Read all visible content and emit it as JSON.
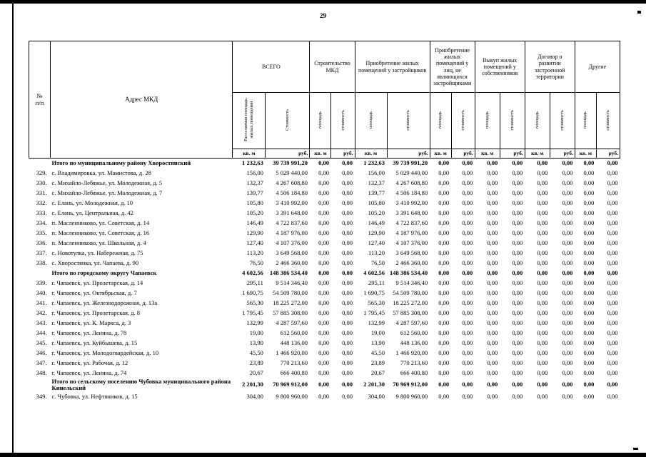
{
  "page": {
    "number": "29"
  },
  "table": {
    "header": {
      "num": "№\nп/п",
      "address": "Адрес МКД",
      "groups": [
        {
          "label": "ВСЕГО",
          "sub": [
            "Расселяемая площадь жилых помещений",
            "Стоимость"
          ]
        },
        {
          "label": "Строительство МКД",
          "sub": [
            "площадь",
            "стоимость"
          ]
        },
        {
          "label": "Приобретение жилых помещений у застройщиков",
          "sub": [
            "площадь",
            "стоимость"
          ]
        },
        {
          "label": "Приобретение жилых помещений у лиц, не являющихся застройщиками",
          "sub": [
            "площадь",
            "стоимость"
          ]
        },
        {
          "label": "Выкуп жилых помещений у собственников",
          "sub": [
            "площадь",
            "стоимость"
          ]
        },
        {
          "label": "Договор о развитии застроенной территории",
          "sub": [
            "площадь",
            "стоимость"
          ]
        },
        {
          "label": "Другие",
          "sub": [
            "площадь",
            "стоимость"
          ]
        }
      ],
      "units": [
        "кв. м",
        "руб.",
        "кв. м",
        "руб.",
        "кв. м",
        "руб.",
        "кв. м",
        "руб.",
        "кв. м",
        "руб.",
        "кв. м",
        "руб.",
        "кв. м",
        "руб."
      ]
    },
    "rows": [
      {
        "num": "",
        "address": "Итого по муниципальному району Хворостянский",
        "bold": true,
        "values": [
          "1 232,63",
          "39 739 991,20",
          "0,00",
          "0,00",
          "1 232,63",
          "39 739 991,20",
          "0,00",
          "0,00",
          "0,00",
          "0,00",
          "0,00",
          "0,00",
          "0,00",
          "0,00"
        ]
      },
      {
        "num": "329.",
        "address": "с. Владимировка, ул. Мамистова, д. 28",
        "bold": false,
        "values": [
          "156,00",
          "5 029 440,00",
          "0,00",
          "0,00",
          "156,00",
          "5 029 440,00",
          "0,00",
          "0,00",
          "0,00",
          "0,00",
          "0,00",
          "0,00",
          "0,00",
          "0,00"
        ]
      },
      {
        "num": "330.",
        "address": "с. Михайло-Лебяжье, ул. Молодежная, д. 5",
        "bold": false,
        "values": [
          "132,37",
          "4 267 608,80",
          "0,00",
          "0,00",
          "132,37",
          "4 267 608,80",
          "0,00",
          "0,00",
          "0,00",
          "0,00",
          "0,00",
          "0,00",
          "0,00",
          "0,00"
        ]
      },
      {
        "num": "331.",
        "address": "с. Михайло-Лебяжье, ул. Молодежная, д. 7",
        "bold": false,
        "values": [
          "139,77",
          "4 506 184,80",
          "0,00",
          "0,00",
          "139,77",
          "4 506 184,80",
          "0,00",
          "0,00",
          "0,00",
          "0,00",
          "0,00",
          "0,00",
          "0,00",
          "0,00"
        ]
      },
      {
        "num": "332.",
        "address": "с. Елань, ул. Молодежная, д. 10",
        "bold": false,
        "values": [
          "105,80",
          "3 410 992,00",
          "0,00",
          "0,00",
          "105,80",
          "3 410 992,00",
          "0,00",
          "0,00",
          "0,00",
          "0,00",
          "0,00",
          "0,00",
          "0,00",
          "0,00"
        ]
      },
      {
        "num": "333.",
        "address": "с. Елань, ул. Центральная, д. 42",
        "bold": false,
        "values": [
          "105,20",
          "3 391 648,00",
          "0,00",
          "0,00",
          "105,20",
          "3 391 648,00",
          "0,00",
          "0,00",
          "0,00",
          "0,00",
          "0,00",
          "0,00",
          "0,00",
          "0,00"
        ]
      },
      {
        "num": "334.",
        "address": "п. Масленниково, ул. Советская, д. 14",
        "bold": false,
        "values": [
          "146,49",
          "4 722 837,60",
          "0,00",
          "0,00",
          "146,49",
          "4 722 837,60",
          "0,00",
          "0,00",
          "0,00",
          "0,00",
          "0,00",
          "0,00",
          "0,00",
          "0,00"
        ]
      },
      {
        "num": "335.",
        "address": "п. Масленниково, ул. Советская, д. 16",
        "bold": false,
        "values": [
          "129,90",
          "4 187 976,00",
          "0,00",
          "0,00",
          "129,90",
          "4 187 976,00",
          "0,00",
          "0,00",
          "0,00",
          "0,00",
          "0,00",
          "0,00",
          "0,00",
          "0,00"
        ]
      },
      {
        "num": "336.",
        "address": "п. Масленниково, ул. Школьная, д. 4",
        "bold": false,
        "values": [
          "127,40",
          "4 107 376,00",
          "0,00",
          "0,00",
          "127,40",
          "4 107 376,00",
          "0,00",
          "0,00",
          "0,00",
          "0,00",
          "0,00",
          "0,00",
          "0,00",
          "0,00"
        ]
      },
      {
        "num": "337.",
        "address": "с. Новотулка, ул. Набережная, д. 75",
        "bold": false,
        "values": [
          "113,20",
          "3 649 568,00",
          "0,00",
          "0,00",
          "113,20",
          "3 649 568,00",
          "0,00",
          "0,00",
          "0,00",
          "0,00",
          "0,00",
          "0,00",
          "0,00",
          "0,00"
        ]
      },
      {
        "num": "338.",
        "address": "с. Хворостянка, ул. Чапаева, д. 90",
        "bold": false,
        "values": [
          "76,50",
          "2 466 360,00",
          "0,00",
          "0,00",
          "76,50",
          "2 466 360,00",
          "0,00",
          "0,00",
          "0,00",
          "0,00",
          "0,00",
          "0,00",
          "0,00",
          "0,00"
        ]
      },
      {
        "num": "",
        "address": "Итого по городскому округу Чапаевск",
        "bold": true,
        "values": [
          "4 602,56",
          "148 386 534,40",
          "0,00",
          "0,00",
          "4 602,56",
          "148 386 534,40",
          "0,00",
          "0,00",
          "0,00",
          "0,00",
          "0,00",
          "0,00",
          "0,00",
          "0,00"
        ]
      },
      {
        "num": "339.",
        "address": "г. Чапаевск, ул. Пролетарская, д. 14",
        "bold": false,
        "values": [
          "295,11",
          "9 514 346,40",
          "0,00",
          "0,00",
          "295,11",
          "9 514 346,40",
          "0,00",
          "0,00",
          "0,00",
          "0,00",
          "0,00",
          "0,00",
          "0,00",
          "0,00"
        ]
      },
      {
        "num": "340.",
        "address": "г. Чапаевск, ул. Октябрьская, д. 7",
        "bold": false,
        "values": [
          "1 690,75",
          "54 509 780,00",
          "0,00",
          "0,00",
          "1 690,75",
          "54 509 780,00",
          "0,00",
          "0,00",
          "0,00",
          "0,00",
          "0,00",
          "0,00",
          "0,00",
          "0,00"
        ]
      },
      {
        "num": "341.",
        "address": "г. Чапаевск, ул. Железнодорожная, д. 13а",
        "bold": false,
        "values": [
          "565,30",
          "18 225 272,00",
          "0,00",
          "0,00",
          "565,30",
          "18 225 272,00",
          "0,00",
          "0,00",
          "0,00",
          "0,00",
          "0,00",
          "0,00",
          "0,00",
          "0,00"
        ]
      },
      {
        "num": "342.",
        "address": "г. Чапаевск, ул. Пролетарская, д. 8",
        "bold": false,
        "values": [
          "1 795,45",
          "57 885 308,00",
          "0,00",
          "0,00",
          "1 795,45",
          "57 885 308,00",
          "0,00",
          "0,00",
          "0,00",
          "0,00",
          "0,00",
          "0,00",
          "0,00",
          "0,00"
        ]
      },
      {
        "num": "343.",
        "address": "г. Чапаевск, ул. К. Маркса, д. 3",
        "bold": false,
        "values": [
          "132,99",
          "4 287 597,60",
          "0,00",
          "0,00",
          "132,99",
          "4 287 597,60",
          "0,00",
          "0,00",
          "0,00",
          "0,00",
          "0,00",
          "0,00",
          "0,00",
          "0,00"
        ]
      },
      {
        "num": "344.",
        "address": "г. Чапаевск, ул. Ленина, д. 78",
        "bold": false,
        "values": [
          "19,00",
          "612 560,00",
          "0,00",
          "0,00",
          "19,00",
          "612 560,00",
          "0,00",
          "0,00",
          "0,00",
          "0,00",
          "0,00",
          "0,00",
          "0,00",
          "0,00"
        ]
      },
      {
        "num": "345.",
        "address": "г. Чапаевск, ул. Куйбышева, д. 15",
        "bold": false,
        "values": [
          "13,90",
          "448 136,00",
          "0,00",
          "0,00",
          "13,90",
          "448 136,00",
          "0,00",
          "0,00",
          "0,00",
          "0,00",
          "0,00",
          "0,00",
          "0,00",
          "0,00"
        ]
      },
      {
        "num": "346.",
        "address": "г. Чапаевск, ул. Молодогвардейская, д. 10",
        "bold": false,
        "values": [
          "45,50",
          "1 466 920,00",
          "0,00",
          "0,00",
          "45,50",
          "1 466 920,00",
          "0,00",
          "0,00",
          "0,00",
          "0,00",
          "0,00",
          "0,00",
          "0,00",
          "0,00"
        ]
      },
      {
        "num": "347.",
        "address": "г. Чапаевск, ул. Рабочая, д. 12",
        "bold": false,
        "values": [
          "23,89",
          "770 213,60",
          "0,00",
          "0,00",
          "23,89",
          "770 213,60",
          "0,00",
          "0,00",
          "0,00",
          "0,00",
          "0,00",
          "0,00",
          "0,00",
          "0,00"
        ]
      },
      {
        "num": "348.",
        "address": "г. Чапаевск, ул. Ленина, д. 74",
        "bold": false,
        "values": [
          "20,67",
          "666 400,80",
          "0,00",
          "0,00",
          "20,67",
          "666 400,80",
          "0,00",
          "0,00",
          "0,00",
          "0,00",
          "0,00",
          "0,00",
          "0,00",
          "0,00"
        ]
      },
      {
        "num": "",
        "address": "Итого по сельскому поселению Чубовка муниципального района Кинельский",
        "bold": true,
        "values": [
          "2 201,30",
          "70 969 912,00",
          "0,00",
          "0,00",
          "2 201,30",
          "70 969 912,00",
          "0,00",
          "0,00",
          "0,00",
          "0,00",
          "0,00",
          "0,00",
          "0,00",
          "0,00"
        ]
      },
      {
        "num": "349.",
        "address": "с. Чубовка, ул. Нефтяников, д. 15",
        "bold": false,
        "values": [
          "304,00",
          "9 800 960,00",
          "0,00",
          "0,00",
          "304,00",
          "9 800 960,00",
          "0,00",
          "0,00",
          "0,00",
          "0,00",
          "0,00",
          "0,00",
          "0,00",
          "0,00"
        ]
      }
    ]
  }
}
